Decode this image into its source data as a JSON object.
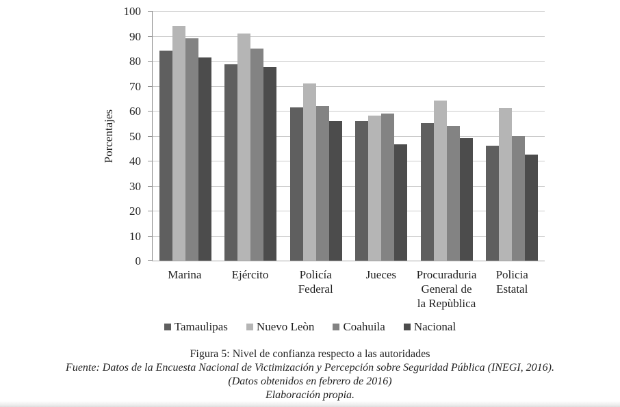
{
  "chart_data": {
    "type": "bar",
    "title": "",
    "xlabel": "",
    "ylabel": "Porcentajes",
    "ylim": [
      0,
      100
    ],
    "yticks": [
      0,
      10,
      20,
      30,
      40,
      50,
      60,
      70,
      80,
      90,
      100
    ],
    "grid": "horizontal",
    "legend_position": "bottom",
    "categories": [
      "Marina",
      "Ejército",
      "Policía\nFederal",
      "Jueces",
      "Procuraduria\nGeneral de\nla Repùblica",
      "Policia\nEstatal"
    ],
    "series": [
      {
        "name": "Tamaulipas",
        "color": "#5f5f5f",
        "values": [
          84,
          78.5,
          61.5,
          56,
          55,
          46
        ]
      },
      {
        "name": "Nuevo Leòn",
        "color": "#b5b5b5",
        "values": [
          94,
          91,
          71,
          58,
          64,
          61
        ]
      },
      {
        "name": "Coahuila",
        "color": "#838383",
        "values": [
          89,
          85,
          62,
          59,
          54,
          50
        ]
      },
      {
        "name": "Nacional",
        "color": "#4c4c4c",
        "values": [
          81.5,
          77.5,
          56,
          46.5,
          49,
          42.5
        ]
      }
    ]
  },
  "caption": {
    "title": "Figura 5: Nivel de confianza respecto a las autoridades",
    "source": "Fuente: Datos de la Encuesta Nacional de Victimización y Percepción sobre Seguridad Pública (INEGI, 2016).",
    "note": "(Datos obtenidos en febrero de 2016)",
    "credit": "Elaboración propia."
  },
  "colors": {
    "axis": "#8c8c8c",
    "gridline": "#c9c9c9",
    "text": "#1f1f1f"
  }
}
